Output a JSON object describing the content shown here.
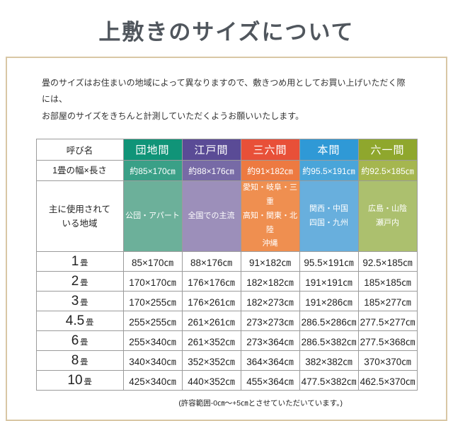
{
  "title": "上敷きのサイズについて",
  "intro": "畳のサイズはお住まいの地域によって異なりますので、敷きつめ用としてお買い上げいただく際には、\nお部屋のサイズをきちんと計測していただくようお願いいたします。",
  "box_border_color": "#d9c7a5",
  "table": {
    "corner_label": "呼び名",
    "width_row_label": "1畳の幅×長さ",
    "region_row_label": "主に使用されて\nいる地域",
    "size_rows": [
      {
        "num": "1",
        "unit": "畳"
      },
      {
        "num": "2",
        "unit": "畳"
      },
      {
        "num": "3",
        "unit": "畳"
      },
      {
        "num": "4.5",
        "unit": "畳"
      },
      {
        "num": "6",
        "unit": "畳"
      },
      {
        "num": "8",
        "unit": "畳"
      },
      {
        "num": "10",
        "unit": "畳"
      }
    ],
    "columns": [
      {
        "name": "団地間",
        "color_header": "#109478",
        "color_width": "#3aa087",
        "color_region": "#6cb09a",
        "width_per_tatami": "約85×170㎝",
        "regions": "公団・アパート",
        "sizes": [
          "85×170㎝",
          "170×170㎝",
          "170×255㎝",
          "255×255㎝",
          "255×340㎝",
          "340×340㎝",
          "425×340㎝"
        ]
      },
      {
        "name": "江戸間",
        "color_header": "#5a4b96",
        "color_width": "#776aa6",
        "color_region": "#9c8fba",
        "width_per_tatami": "約88×176㎝",
        "regions": "全国での主流",
        "sizes": [
          "88×176㎝",
          "176×176㎝",
          "176×261㎝",
          "261×261㎝",
          "261×352㎝",
          "352×352㎝",
          "440×352㎝"
        ]
      },
      {
        "name": "三六間",
        "color_header": "#e85038",
        "color_width": "#ed7a41",
        "color_region": "#ef8f50",
        "width_per_tatami": "約91×182㎝",
        "regions": "愛知・岐阜・三重\n高知・関東・北陸\n沖縄",
        "sizes": [
          "91×182㎝",
          "182×182㎝",
          "182×273㎝",
          "273×273㎝",
          "273×364㎝",
          "364×364㎝",
          "455×364㎝"
        ]
      },
      {
        "name": "本間",
        "color_header": "#2f99d6",
        "color_width": "#4aa5d9",
        "color_region": "#68afdd",
        "width_per_tatami": "約95.5×191㎝",
        "regions": "関西・中国\n四国・九州",
        "sizes": [
          "95.5×191㎝",
          "191×191㎝",
          "191×286㎝",
          "286.5×286㎝",
          "286.5×382㎝",
          "382×382㎝",
          "477.5×382㎝"
        ]
      },
      {
        "name": "六一間",
        "color_header": "#8fa72d",
        "color_width": "#a5b64f",
        "color_region": "#acc06e",
        "width_per_tatami": "約92.5×185㎝",
        "regions": "広島・山陰\n瀬戸内",
        "sizes": [
          "92.5×185㎝",
          "185×185㎝",
          "185×277㎝",
          "277.5×277㎝",
          "277.5×368㎝",
          "370×370㎝",
          "462.5×370㎝"
        ]
      }
    ]
  },
  "footnote": "(許容範囲-0㎝～+5㎝とさせていただいています。)"
}
